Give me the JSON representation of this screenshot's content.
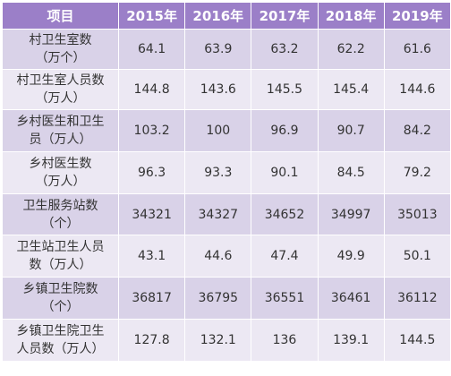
{
  "table": {
    "headers": [
      "项目",
      "2015年",
      "2016年",
      "2017年",
      "2018年",
      "2019年"
    ],
    "rows": [
      {
        "label_lines": [
          "村卫生室数",
          "（万个）"
        ],
        "values": [
          "64.1",
          "63.9",
          "63.2",
          "62.2",
          "61.6"
        ]
      },
      {
        "label_lines": [
          "村卫生室人员数",
          "（万人）"
        ],
        "values": [
          "144.8",
          "143.6",
          "145.5",
          "145.4",
          "144.6"
        ]
      },
      {
        "label_lines": [
          "乡村医生和卫生",
          "员（万人）"
        ],
        "values": [
          "103.2",
          "100",
          "96.9",
          "90.7",
          "84.2"
        ]
      },
      {
        "label_lines": [
          "乡村医生数",
          "（万人）"
        ],
        "values": [
          "96.3",
          "93.3",
          "90.1",
          "84.5",
          "79.2"
        ]
      },
      {
        "label_lines": [
          "卫生服务站数",
          "（个）"
        ],
        "values": [
          "34321",
          "34327",
          "34652",
          "34997",
          "35013"
        ]
      },
      {
        "label_lines": [
          "卫生站卫生人员",
          "数（万人）"
        ],
        "values": [
          "43.1",
          "44.6",
          "47.4",
          "49.9",
          "50.1"
        ]
      },
      {
        "label_lines": [
          "乡镇卫生院数",
          "（个）"
        ],
        "values": [
          "36817",
          "36795",
          "36551",
          "36461",
          "36112"
        ]
      },
      {
        "label_lines": [
          "乡镇卫生院卫生",
          "人员数（万人）"
        ],
        "values": [
          "127.8",
          "132.1",
          "136",
          "139.1",
          "144.5"
        ]
      }
    ]
  }
}
